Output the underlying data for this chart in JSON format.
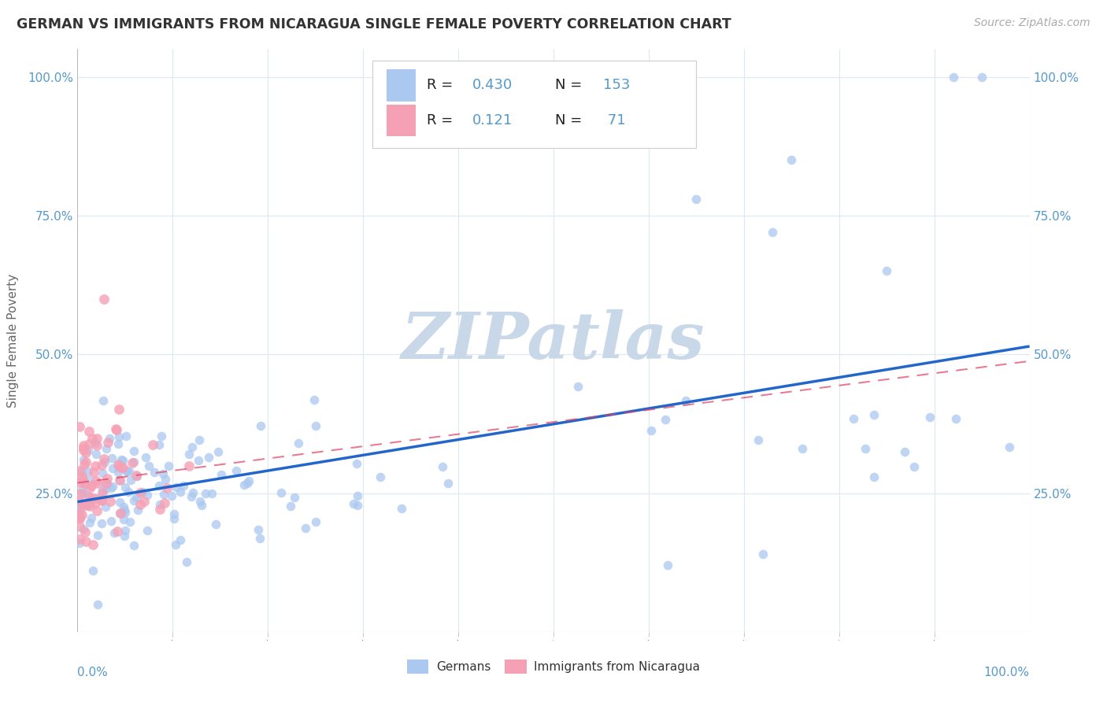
{
  "title": "GERMAN VS IMMIGRANTS FROM NICARAGUA SINGLE FEMALE POVERTY CORRELATION CHART",
  "source": "Source: ZipAtlas.com",
  "ylabel": "Single Female Poverty",
  "blue_color": "#aac8f0",
  "pink_color": "#f5a0b5",
  "blue_line_color": "#2266cc",
  "pink_line_color": "#dd4466",
  "watermark_color": "#c8d8e8",
  "background_color": "#ffffff",
  "grid_color": "#e0e8f0",
  "xlim": [
    0,
    1
  ],
  "ylim": [
    0,
    1.05
  ],
  "blue_R": 0.43,
  "blue_N": 153,
  "pink_R": 0.121,
  "pink_N": 71,
  "tick_color": "#5599cc",
  "title_color": "#333333",
  "source_color": "#aaaaaa"
}
